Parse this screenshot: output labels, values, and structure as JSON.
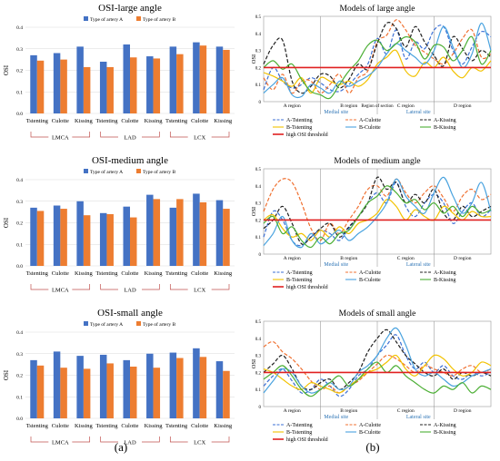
{
  "colors": {
    "type_a": "#4472c4",
    "type_b": "#ed7d31",
    "threshold": "#e02020",
    "grid": "#d9d9d9",
    "group_bracket": "#c0504d",
    "site_label": "#2e75b6",
    "curves": [
      "#3b6fd4",
      "#f07030",
      "#202020",
      "#f2c200",
      "#4aa3df",
      "#4caf35"
    ]
  },
  "panel_labels": {
    "a": "(a)",
    "b": "(b)"
  },
  "chart_data": [
    {
      "type": "bar",
      "title": "OSI-large angle",
      "ylabel": "OSI",
      "ylim": [
        0,
        0.4
      ],
      "yticks": [
        "0.0",
        "0.1",
        "0.2",
        "0.3",
        "0.4"
      ],
      "grid": true,
      "legend": "top-center",
      "categories": [
        "Tstenting",
        "Culotte",
        "Kissing",
        "Tstenting",
        "Culotte",
        "Kissing",
        "Tstenting",
        "Culotte",
        "Kissing"
      ],
      "groups": [
        "LMCA",
        "LAD",
        "LCX"
      ],
      "series": [
        {
          "name": "Type of artery A",
          "values": [
            0.27,
            0.28,
            0.31,
            0.24,
            0.32,
            0.265,
            0.31,
            0.33,
            0.31
          ]
        },
        {
          "name": "Type of artery B",
          "values": [
            0.245,
            0.25,
            0.215,
            0.215,
            0.26,
            0.255,
            0.275,
            0.315,
            0.295
          ]
        }
      ]
    },
    {
      "type": "bar",
      "title": "OSI-medium angle",
      "ylabel": "OSI",
      "ylim": [
        0,
        0.4
      ],
      "yticks": [
        "0.0",
        "0.1",
        "0.2",
        "0.3",
        "0.4"
      ],
      "grid": true,
      "legend": "top-center",
      "categories": [
        "Tstenting",
        "Culotte",
        "Kissing",
        "Tstenting",
        "Culotte",
        "Kissing",
        "Tstenting",
        "Culotte",
        "Kissing"
      ],
      "groups": [
        "LMCA",
        "LAD",
        "LCX"
      ],
      "series": [
        {
          "name": "Type of artery A",
          "values": [
            0.27,
            0.28,
            0.3,
            0.245,
            0.275,
            0.33,
            0.27,
            0.335,
            0.305
          ]
        },
        {
          "name": "Type of artery B",
          "values": [
            0.255,
            0.265,
            0.235,
            0.24,
            0.225,
            0.31,
            0.31,
            0.295,
            0.265
          ]
        }
      ]
    },
    {
      "type": "bar",
      "title": "OSI-small angle",
      "ylabel": "OSI",
      "ylim": [
        0,
        0.4
      ],
      "yticks": [
        "0.0",
        "0.1",
        "0.2",
        "0.3",
        "0.4"
      ],
      "grid": true,
      "legend": "top-center",
      "categories": [
        "Tstenting",
        "Culotte",
        "Kissing",
        "Tstenting",
        "Culotte",
        "Kissing",
        "Tstenting",
        "Culotte",
        "Kissing"
      ],
      "groups": [
        "LMCA",
        "LAD",
        "LCX"
      ],
      "series": [
        {
          "name": "Type of artery A",
          "values": [
            0.27,
            0.31,
            0.29,
            0.295,
            0.27,
            0.3,
            0.305,
            0.325,
            0.265
          ]
        },
        {
          "name": "Type of artery B",
          "values": [
            0.245,
            0.235,
            0.23,
            0.255,
            0.24,
            0.235,
            0.28,
            0.285,
            0.22
          ]
        }
      ]
    },
    {
      "type": "line",
      "title": "Models of large angle",
      "ylabel": "OSI",
      "xlabel": "Region of section",
      "ylim": [
        0,
        0.5
      ],
      "yticks": [
        "0",
        "0.1",
        "0.2",
        "0.3",
        "0.4",
        "0.5"
      ],
      "regions": [
        "A region",
        "B region",
        "C region",
        "D region"
      ],
      "sites": [
        "Medial site",
        "Lateral site"
      ],
      "threshold": 0.2,
      "legend": [
        "A-Tstenting",
        "A-Culotte",
        "A-Kissing",
        "B-Tstenting",
        "B-Culotte",
        "B-Kissing",
        "high OSI threshold"
      ],
      "series": [
        {
          "name": "A-Tstenting",
          "dash": true,
          "values": [
            0.07,
            0.2,
            0.12,
            0.08,
            0.1,
            0.14,
            0.11,
            0.07,
            0.06,
            0.1,
            0.16,
            0.22,
            0.37,
            0.28,
            0.42,
            0.25,
            0.35,
            0.31,
            0.42,
            0.44,
            0.3,
            0.22,
            0.32,
            0.41,
            0.38
          ]
        },
        {
          "name": "A-Culotte",
          "dash": true,
          "values": [
            0.14,
            0.07,
            0.16,
            0.05,
            0.12,
            0.12,
            0.05,
            0.1,
            0.16,
            0.05,
            0.14,
            0.18,
            0.35,
            0.39,
            0.48,
            0.42,
            0.33,
            0.29,
            0.25,
            0.22,
            0.28,
            0.37,
            0.42,
            0.26,
            0.28
          ]
        },
        {
          "name": "A-Kissing",
          "dash": true,
          "values": [
            0.22,
            0.33,
            0.36,
            0.12,
            0.05,
            0.09,
            0.16,
            0.15,
            0.08,
            0.13,
            0.22,
            0.19,
            0.34,
            0.46,
            0.43,
            0.32,
            0.44,
            0.35,
            0.27,
            0.21,
            0.38,
            0.31,
            0.24,
            0.3,
            0.26
          ]
        },
        {
          "name": "B-Tstenting",
          "dash": false,
          "values": [
            0.17,
            0.15,
            0.12,
            0.09,
            0.14,
            0.05,
            0.14,
            0.12,
            0.1,
            0.12,
            0.09,
            0.13,
            0.22,
            0.26,
            0.3,
            0.18,
            0.15,
            0.23,
            0.2,
            0.26,
            0.18,
            0.14,
            0.2,
            0.18,
            0.24
          ]
        },
        {
          "name": "B-Culotte",
          "dash": false,
          "values": [
            0.05,
            0.1,
            0.14,
            0.04,
            0.03,
            0.1,
            0.08,
            0.05,
            0.12,
            0.09,
            0.12,
            0.15,
            0.2,
            0.28,
            0.34,
            0.3,
            0.26,
            0.22,
            0.3,
            0.44,
            0.32,
            0.2,
            0.28,
            0.46,
            0.3
          ]
        },
        {
          "name": "B-Kissing",
          "dash": false,
          "values": [
            0.2,
            0.24,
            0.19,
            0.22,
            0.13,
            0.06,
            0.04,
            0.02,
            0.1,
            0.18,
            0.24,
            0.33,
            0.36,
            0.3,
            0.34,
            0.38,
            0.35,
            0.25,
            0.33,
            0.32,
            0.24,
            0.3,
            0.38,
            0.22,
            0.3
          ]
        }
      ]
    },
    {
      "type": "line",
      "title": "Models of medium angle",
      "ylabel": "OSI",
      "ylim": [
        0,
        0.5
      ],
      "yticks": [
        "0",
        "0.1",
        "0.2",
        "0.3",
        "0.4",
        "0.5"
      ],
      "regions": [
        "A region",
        "B region",
        "C region",
        "D region"
      ],
      "sites": [
        "Medial site",
        "Lateral site"
      ],
      "threshold": 0.2,
      "legend": [
        "A-Tstenting",
        "A-Culotte",
        "A-Kissing",
        "B-Tstenting",
        "B-Culotte",
        "B-Kissing",
        "high OSI threshold"
      ],
      "series": [
        {
          "name": "A-Tstenting",
          "dash": true,
          "values": [
            0.1,
            0.25,
            0.2,
            0.08,
            0.05,
            0.1,
            0.14,
            0.12,
            0.08,
            0.15,
            0.22,
            0.3,
            0.36,
            0.3,
            0.42,
            0.28,
            0.22,
            0.3,
            0.35,
            0.3,
            0.18,
            0.25,
            0.3,
            0.22,
            0.26
          ]
        },
        {
          "name": "A-Culotte",
          "dash": true,
          "values": [
            0.25,
            0.38,
            0.44,
            0.42,
            0.3,
            0.15,
            0.08,
            0.18,
            0.12,
            0.2,
            0.28,
            0.38,
            0.4,
            0.34,
            0.44,
            0.36,
            0.3,
            0.36,
            0.4,
            0.33,
            0.25,
            0.34,
            0.38,
            0.32,
            0.35
          ]
        },
        {
          "name": "A-Kissing",
          "dash": true,
          "values": [
            0.15,
            0.2,
            0.28,
            0.18,
            0.06,
            0.1,
            0.15,
            0.18,
            0.1,
            0.16,
            0.22,
            0.3,
            0.45,
            0.38,
            0.42,
            0.3,
            0.35,
            0.3,
            0.38,
            0.24,
            0.2,
            0.28,
            0.22,
            0.25,
            0.28
          ]
        },
        {
          "name": "B-Tstenting",
          "dash": false,
          "values": [
            0.2,
            0.23,
            0.15,
            0.1,
            0.12,
            0.08,
            0.14,
            0.1,
            0.16,
            0.12,
            0.18,
            0.2,
            0.24,
            0.32,
            0.28,
            0.2,
            0.26,
            0.22,
            0.2,
            0.28,
            0.24,
            0.2,
            0.25,
            0.22,
            0.22
          ]
        },
        {
          "name": "B-Culotte",
          "dash": false,
          "values": [
            0.05,
            0.12,
            0.22,
            0.08,
            0.04,
            0.12,
            0.06,
            0.1,
            0.14,
            0.08,
            0.12,
            0.16,
            0.22,
            0.3,
            0.44,
            0.34,
            0.28,
            0.24,
            0.36,
            0.45,
            0.34,
            0.24,
            0.3,
            0.42,
            0.25
          ]
        },
        {
          "name": "B-Kissing",
          "dash": false,
          "values": [
            0.18,
            0.22,
            0.12,
            0.16,
            0.08,
            0.04,
            0.1,
            0.06,
            0.12,
            0.14,
            0.22,
            0.3,
            0.34,
            0.4,
            0.36,
            0.3,
            0.32,
            0.26,
            0.3,
            0.24,
            0.28,
            0.22,
            0.28,
            0.24,
            0.26
          ]
        }
      ]
    },
    {
      "type": "line",
      "title": "Models of small angle",
      "ylabel": "OSI",
      "ylim": [
        0,
        0.5
      ],
      "yticks": [
        "0",
        "0.1",
        "0.2",
        "0.3",
        "0.4",
        "0.5"
      ],
      "regions": [
        "A region",
        "B region",
        "C region",
        "D region"
      ],
      "sites": [
        "Medial site",
        "Lateral site"
      ],
      "threshold": 0.2,
      "legend": [
        "A-Tstenting",
        "A-Culotte",
        "A-Kissing",
        "B-Tstenting",
        "B-Culotte",
        "B-Kissing",
        "high OSI threshold"
      ],
      "series": [
        {
          "name": "A-Tstenting",
          "dash": true,
          "values": [
            0.12,
            0.18,
            0.22,
            0.15,
            0.08,
            0.1,
            0.16,
            0.12,
            0.06,
            0.1,
            0.18,
            0.22,
            0.3,
            0.36,
            0.42,
            0.3,
            0.22,
            0.26,
            0.2,
            0.24,
            0.18,
            0.16,
            0.2,
            0.18,
            0.2
          ]
        },
        {
          "name": "A-Culotte",
          "dash": true,
          "values": [
            0.35,
            0.38,
            0.32,
            0.28,
            0.22,
            0.15,
            0.1,
            0.12,
            0.08,
            0.12,
            0.15,
            0.2,
            0.25,
            0.3,
            0.28,
            0.24,
            0.2,
            0.24,
            0.22,
            0.2,
            0.18,
            0.22,
            0.24,
            0.2,
            0.22
          ]
        },
        {
          "name": "A-Kissing",
          "dash": true,
          "values": [
            0.2,
            0.25,
            0.3,
            0.22,
            0.12,
            0.1,
            0.14,
            0.16,
            0.1,
            0.14,
            0.2,
            0.32,
            0.4,
            0.45,
            0.38,
            0.3,
            0.25,
            0.2,
            0.18,
            0.22,
            0.16,
            0.2,
            0.18,
            0.2,
            0.18
          ]
        },
        {
          "name": "B-Tstenting",
          "dash": false,
          "values": [
            0.22,
            0.2,
            0.16,
            0.12,
            0.1,
            0.14,
            0.12,
            0.1,
            0.08,
            0.12,
            0.16,
            0.2,
            0.22,
            0.26,
            0.3,
            0.22,
            0.18,
            0.24,
            0.3,
            0.28,
            0.22,
            0.18,
            0.2,
            0.26,
            0.24
          ]
        },
        {
          "name": "B-Culotte",
          "dash": false,
          "values": [
            0.08,
            0.15,
            0.22,
            0.2,
            0.12,
            0.08,
            0.1,
            0.14,
            0.1,
            0.12,
            0.2,
            0.24,
            0.3,
            0.4,
            0.46,
            0.36,
            0.22,
            0.18,
            0.2,
            0.16,
            0.12,
            0.14,
            0.18,
            0.2,
            0.22
          ]
        },
        {
          "name": "B-Kissing",
          "dash": false,
          "values": [
            0.16,
            0.2,
            0.24,
            0.18,
            0.1,
            0.06,
            0.1,
            0.14,
            0.18,
            0.12,
            0.16,
            0.22,
            0.26,
            0.2,
            0.24,
            0.18,
            0.14,
            0.1,
            0.08,
            0.12,
            0.1,
            0.14,
            0.08,
            0.12,
            0.1
          ]
        }
      ]
    }
  ]
}
